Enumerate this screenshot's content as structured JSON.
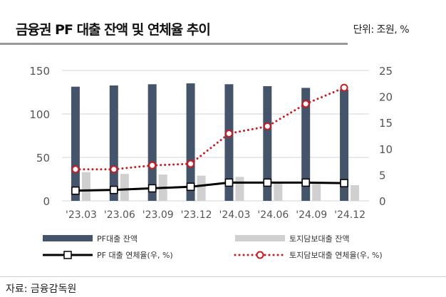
{
  "header": {
    "title": "금융권 PF 대출 잔액 및 연체율 추이",
    "unit": "단위: 조원, %"
  },
  "source": "자료: 금융감독원",
  "chart_data": {
    "type": "bar+line",
    "categories": [
      "'23.03",
      "'23.06",
      "'23.09",
      "'23.12",
      "'24.03",
      "'24.06",
      "'24.09",
      "'24.12"
    ],
    "y_left": {
      "range": [
        0,
        150
      ],
      "ticks": [
        0,
        50,
        100,
        150
      ]
    },
    "y_right": {
      "range": [
        0,
        25
      ],
      "ticks": [
        0,
        5,
        10,
        15,
        20,
        25
      ]
    },
    "grid": true,
    "legend_placement": "bottom",
    "series": [
      {
        "name": "PF대출 잔액",
        "kind": "bar",
        "axis": "left",
        "color": "#44546a",
        "values": [
          131.4,
          132.8,
          134.2,
          135.2,
          134.2,
          132,
          130,
          128
        ]
      },
      {
        "name": "토지담보대출 잔액",
        "kind": "bar",
        "axis": "left",
        "color": "#d0d0d0",
        "values": [
          33,
          31,
          30.3,
          29,
          27.6,
          20,
          19.4,
          18
        ]
      },
      {
        "name": "PF 대출 연체율(우, %)",
        "kind": "line",
        "axis": "right",
        "color": "#000000",
        "values": [
          1.96,
          2.1,
          2.4,
          2.7,
          3.5,
          3.5,
          3.5,
          3.4
        ]
      },
      {
        "name": "토지담보대출 연체율(우, %)",
        "kind": "dotted-line",
        "axis": "right",
        "color": "#d0181e",
        "values": [
          6.05,
          6.05,
          6.8,
          7.1,
          12.9,
          14.3,
          18.6,
          21.7
        ]
      }
    ]
  }
}
